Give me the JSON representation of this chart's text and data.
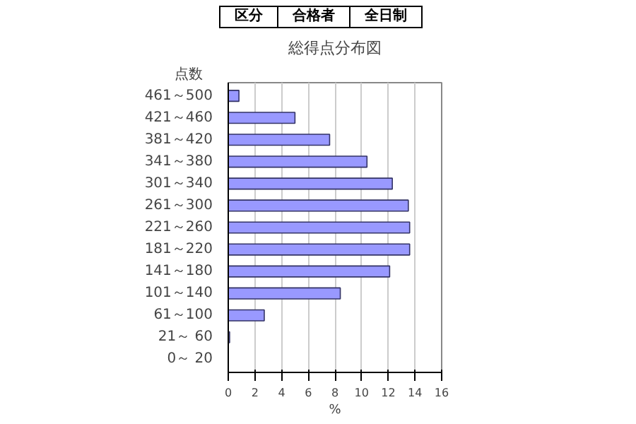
{
  "chart_data": {
    "type": "bar",
    "orientation": "horizontal",
    "title": "総得点分布図",
    "xlabel": "%",
    "ylabel": "点数",
    "annotations": [
      "区分",
      "合格者",
      "全日制"
    ],
    "categories": [
      "461～500",
      "421～460",
      "381～420",
      "341～380",
      "301～340",
      "261～300",
      "221～260",
      "181～220",
      "141～180",
      "101～140",
      "61～100",
      "21～ 60",
      "0～ 20"
    ],
    "values": [
      0.8,
      5.0,
      7.6,
      10.4,
      12.3,
      13.5,
      13.6,
      13.6,
      12.1,
      8.4,
      2.7,
      0.1,
      0
    ],
    "color": "#9999ff",
    "xlim": [
      0,
      16
    ],
    "xticks": [
      0,
      2,
      4,
      6,
      8,
      10,
      12,
      14,
      16
    ],
    "grid": "x"
  }
}
